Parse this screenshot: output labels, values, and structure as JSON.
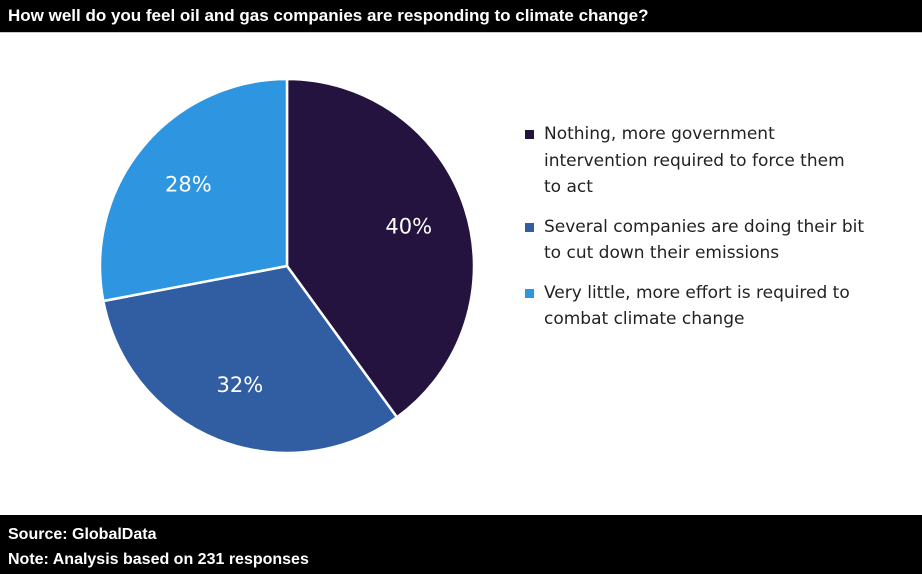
{
  "header": {
    "title": "How well do you feel oil and gas companies are responding to climate change?"
  },
  "chart_data": {
    "type": "pie",
    "title": "How well do you feel oil and gas companies are responding to climate change?",
    "unit": "%",
    "start_angle": "12 o'clock, clockwise",
    "legend_position": "right",
    "slices": [
      {
        "name": "Nothing, more government intervention required to force them to act",
        "value": 40,
        "label": "40%",
        "color": "#24133f"
      },
      {
        "name": "Several companies are doing their bit to cut down their emissions",
        "value": 32,
        "label": "32%",
        "color": "#315ea3"
      },
      {
        "name": "Very little, more effort is required to combat climate change",
        "value": 28,
        "label": "28%",
        "color": "#2e96e0"
      }
    ]
  },
  "footer": {
    "source": "Source: GlobalData",
    "note": "Note: Analysis based on 231 responses"
  }
}
